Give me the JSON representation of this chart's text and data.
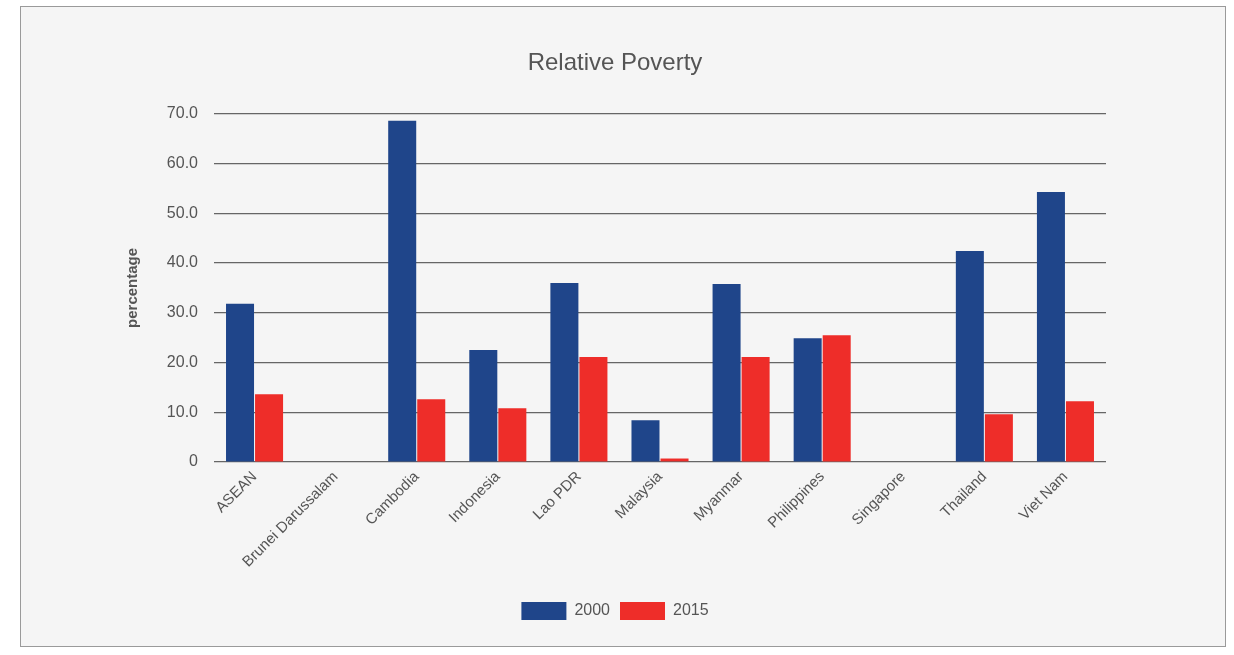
{
  "chart_data": {
    "type": "bar",
    "title": "Relative Poverty",
    "ylabel": "percentage",
    "categories": [
      "ASEAN",
      "Brunei Darussalam",
      "Cambodia",
      "Indonesia",
      "Lao PDR",
      "Malaysia",
      "Myanmar",
      "Philippines",
      "Singapore",
      "Thailand",
      "Viet Nam"
    ],
    "series": [
      {
        "name": "2000",
        "color": "#1f458a",
        "values": [
          31.8,
          null,
          68.6,
          22.5,
          36.0,
          8.4,
          35.8,
          24.9,
          null,
          42.4,
          54.3
        ]
      },
      {
        "name": "2015",
        "color": "#ee2d29",
        "values": [
          13.6,
          null,
          12.6,
          10.8,
          21.1,
          0.7,
          21.1,
          25.5,
          null,
          9.6,
          12.2
        ]
      }
    ],
    "ylim": [
      0,
      70
    ],
    "yticks": [
      0,
      {
        "value": 10,
        "label": "10.0"
      },
      {
        "value": 20,
        "label": "20.0"
      },
      {
        "value": 30,
        "label": "30.0"
      },
      {
        "value": 40,
        "label": "40.0"
      },
      {
        "value": 50,
        "label": "50.0"
      },
      {
        "value": 60,
        "label": "60.0"
      },
      {
        "value": 70,
        "label": "70.0"
      }
    ],
    "grid": "y",
    "legend": "bottom"
  }
}
